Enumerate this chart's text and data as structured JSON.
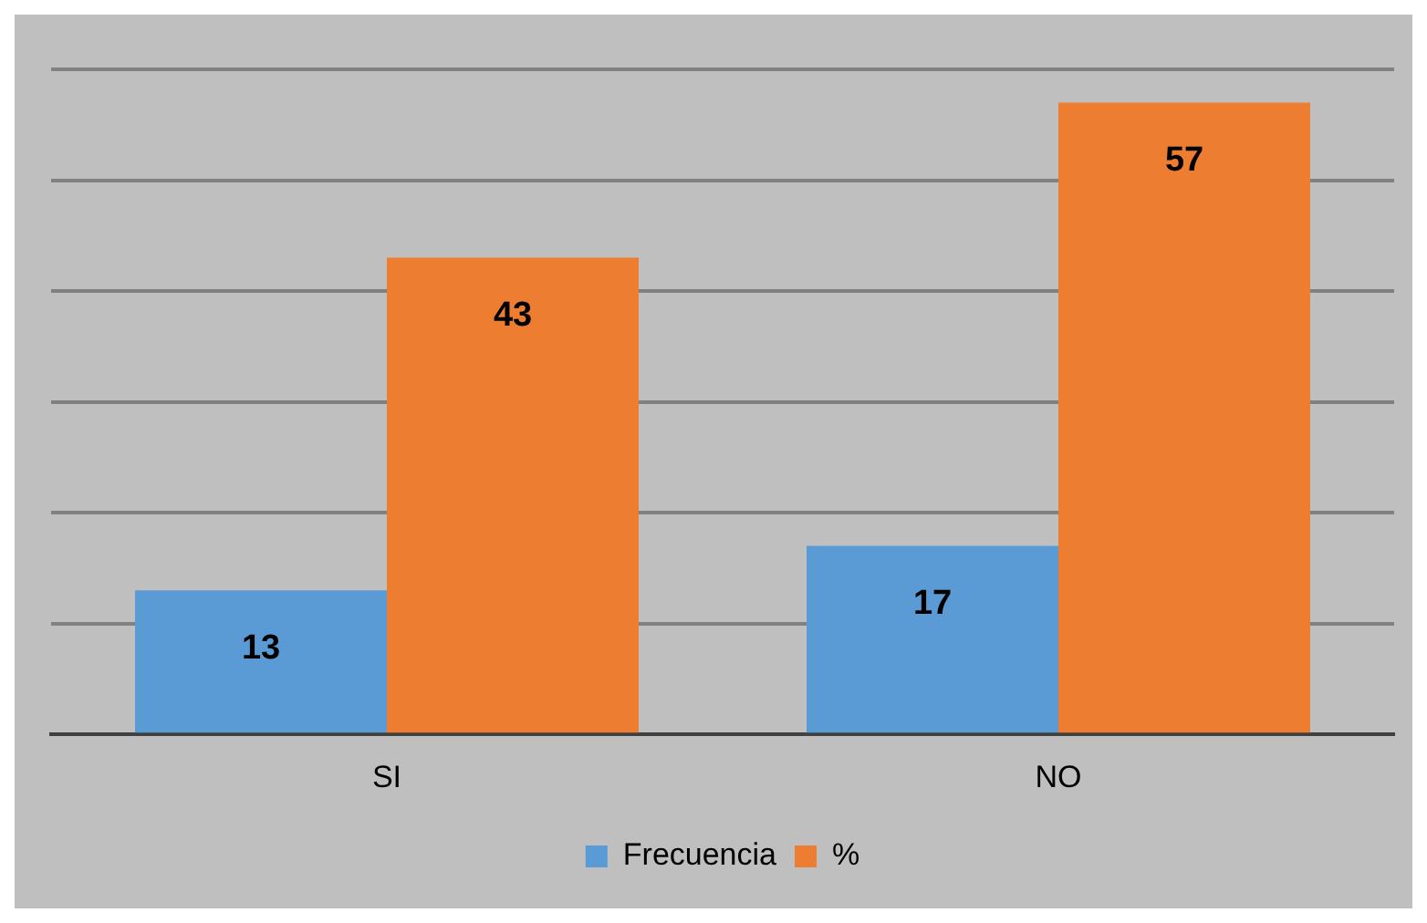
{
  "chart_data": {
    "type": "bar",
    "categories": [
      "SI",
      "NO"
    ],
    "series": [
      {
        "name": "Frecuencia",
        "color": "#5b9bd5",
        "values": [
          13,
          17
        ]
      },
      {
        "name": "%",
        "color": "#ed7d31",
        "values": [
          43,
          57
        ]
      }
    ],
    "ylim": [
      0,
      60
    ],
    "yticks": [
      {
        "value": 0,
        "label": null
      },
      {
        "value": 10,
        "label": null
      },
      {
        "value": 20,
        "label": null
      },
      {
        "value": 30,
        "label": null
      },
      {
        "value": 40,
        "label": null
      },
      {
        "value": 50,
        "label": null
      },
      {
        "value": 60,
        "label": null
      }
    ],
    "tick_labels": "x",
    "grid": "y",
    "legend": "bottom",
    "data_labels": true
  }
}
